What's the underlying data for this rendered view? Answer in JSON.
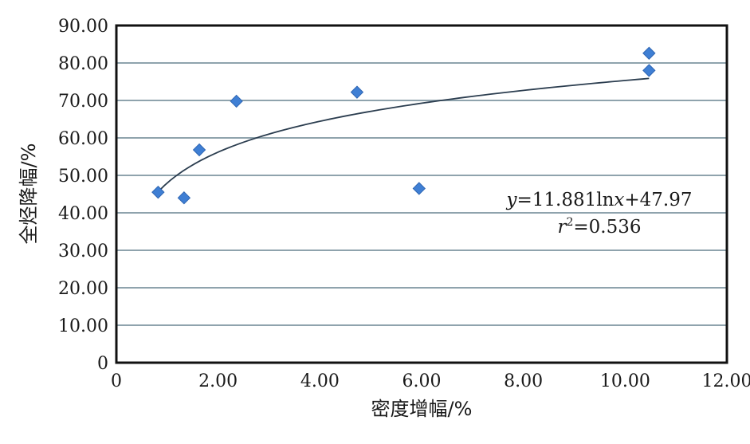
{
  "chart_data": {
    "type": "scatter",
    "xlabel": "密度增幅/%",
    "ylabel": "全烃降幅/%",
    "xlim": [
      0,
      12
    ],
    "ylim": [
      0,
      90
    ],
    "x_ticks": [
      0,
      2,
      4,
      6,
      8,
      10,
      12
    ],
    "x_tick_labels": [
      "0",
      "2.00",
      "4.00",
      "6.00",
      "8.00",
      "10.00",
      "12.00"
    ],
    "y_ticks": [
      0,
      10,
      20,
      30,
      40,
      50,
      60,
      70,
      80,
      90
    ],
    "y_tick_labels": [
      "0",
      "10.00",
      "20.00",
      "30.00",
      "40.00",
      "50.00",
      "60.00",
      "70.00",
      "80.00",
      "90.00"
    ],
    "grid": "horizontal",
    "legend": "none",
    "series": [
      {
        "marker": "diamond",
        "color": "#3f7fd4",
        "x": [
          0.82,
          1.33,
          1.63,
          2.36,
          4.73,
          5.95,
          10.47,
          10.47
        ],
        "y": [
          45.5,
          44.0,
          56.8,
          69.8,
          72.2,
          46.5,
          82.6,
          78.0
        ]
      }
    ],
    "trendline": {
      "type": "logarithmic",
      "a": 11.881,
      "b": 47.97,
      "x_range": [
        0.82,
        10.47
      ],
      "color": "#2b3d4f"
    },
    "annotations": {
      "equation_prefix": "y",
      "equation_rest": "=11.881ln",
      "equation_x": "x",
      "equation_tail": "+47.97",
      "r2_prefix": "r",
      "r2_sup": "2",
      "r2_tail": "=0.536"
    }
  }
}
